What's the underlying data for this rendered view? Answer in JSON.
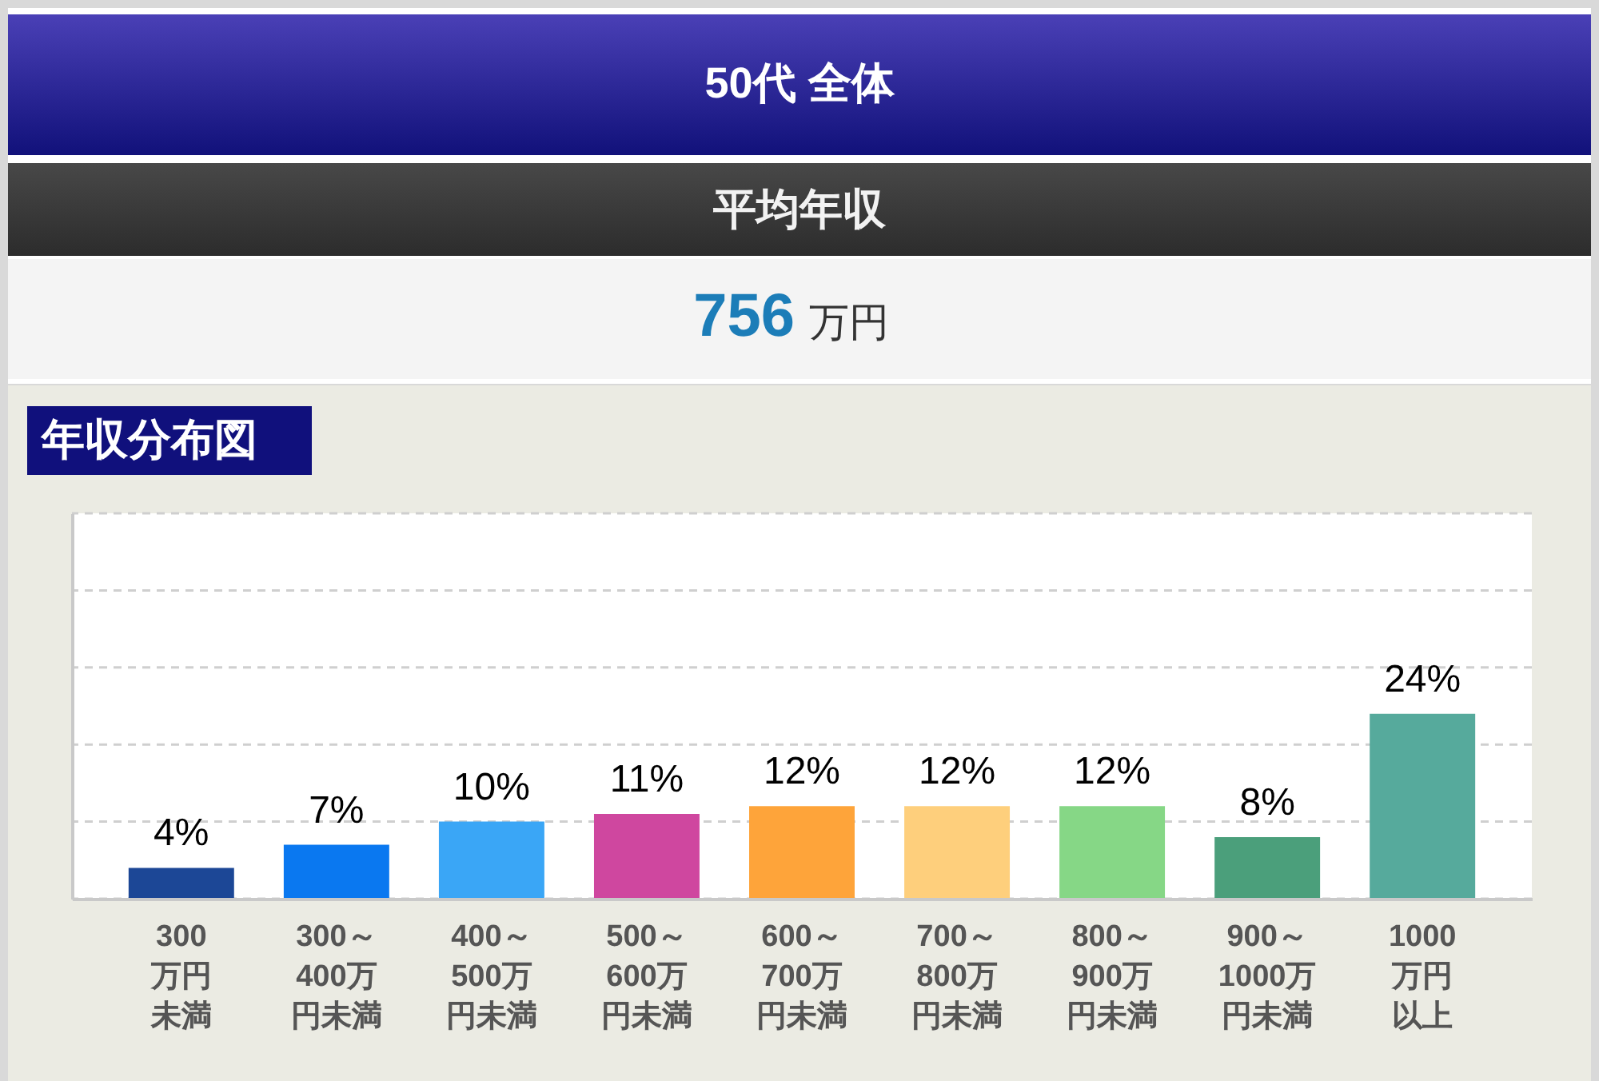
{
  "chart_data": {
    "type": "bar",
    "title": "50代 全体",
    "subtitle": "平均年収",
    "annotations": [
      "756",
      "万円",
      "年収分布図"
    ],
    "categories": [
      "300万円未満",
      "300～400万円未満",
      "400～500万円未満",
      "500～600万円未満",
      "600～700万円未満",
      "700～800万円未満",
      "800～900万円未満",
      "900～1000万円未満",
      "1000万円以上"
    ],
    "values": [
      4,
      7,
      10,
      11,
      12,
      12,
      12,
      8,
      24
    ],
    "value_labels": [
      "4%",
      "7%",
      "10%",
      "11%",
      "12%",
      "12%",
      "12%",
      "8%",
      "24%"
    ],
    "colors": [
      "#1c4796",
      "#0a78f0",
      "#3aa6f6",
      "#cf479f",
      "#fea43a",
      "#fecf7c",
      "#86d786",
      "#4b9f7b",
      "#56aa9c"
    ],
    "ylim": [
      0,
      50
    ],
    "yticks": [
      {
        "value": 0,
        "label": null
      },
      {
        "value": 10,
        "label": null
      },
      {
        "value": 20,
        "label": null
      },
      {
        "value": 30,
        "label": null
      },
      {
        "value": 40,
        "label": null
      },
      {
        "value": 50,
        "label": null
      }
    ],
    "grid": "y",
    "tick_labels": "x"
  }
}
